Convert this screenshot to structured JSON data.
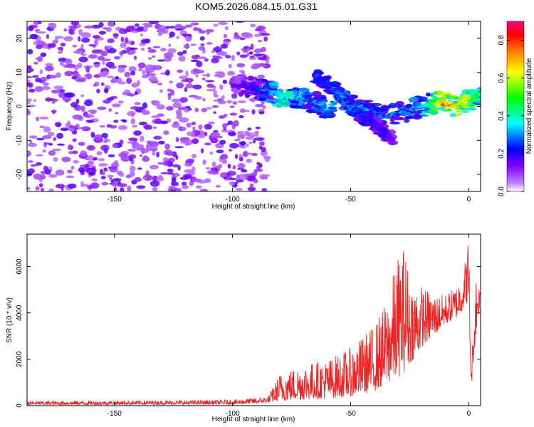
{
  "figure": {
    "title": "KOM5.2026.084.15.01.G31"
  },
  "colors": {
    "snr_line": "#ee2222",
    "colormap": [
      "#ffffff",
      "#c080ff",
      "#8000ff",
      "#0000ff",
      "#00ffff",
      "#00ff00",
      "#ffff00",
      "#ff8000",
      "#ff0000",
      "#ff0080"
    ]
  },
  "chart_data": [
    {
      "type": "heatmap",
      "title": "KOM5.2026.084.15.01.G31",
      "xlabel": "Height of straight line (km)",
      "ylabel": "Frequency (Hz)",
      "xlim": [
        -187,
        5
      ],
      "ylim": [
        -25,
        25
      ],
      "xticks": [
        -150,
        -100,
        -50,
        0
      ],
      "yticks": [
        -20,
        -10,
        0,
        10,
        20
      ],
      "xtick_labels": [
        "-150",
        "-100",
        "-50",
        "0"
      ],
      "ytick_labels": [
        "-20",
        "-10",
        "0",
        "10",
        "20"
      ],
      "noise_region_x": [
        -187,
        -85
      ],
      "noise_amplitude_range": [
        0.05,
        0.3
      ],
      "ridge": {
        "description": "frequency track of main signal",
        "x": [
          -100,
          -92,
          -85,
          -80,
          -75,
          -70,
          -65,
          -60,
          -55,
          -50,
          -45,
          -40,
          -35,
          -30,
          -25,
          -20,
          -15,
          -10,
          -5,
          0,
          3,
          5
        ],
        "freq_hz": [
          6,
          5.5,
          4.5,
          3,
          3,
          2,
          1,
          -1,
          2,
          1,
          -1,
          -2,
          -3,
          -2,
          -1,
          0,
          1,
          1,
          0,
          2,
          2,
          2
        ],
        "amplitude": [
          0.15,
          0.2,
          0.3,
          0.45,
          0.45,
          0.3,
          0.3,
          0.35,
          0.35,
          0.4,
          0.35,
          0.3,
          0.3,
          0.3,
          0.3,
          0.35,
          0.55,
          0.8,
          0.7,
          0.6,
          0.5,
          0.4
        ]
      },
      "secondary_branch": {
        "x": [
          -65,
          -60,
          -55,
          -50,
          -45,
          -40,
          -35,
          -32
        ],
        "freq_hz": [
          9,
          7,
          4,
          0,
          -3,
          -5,
          -8,
          -10
        ],
        "amplitude": [
          0.25,
          0.25,
          0.3,
          0.3,
          0.25,
          0.2,
          0.2,
          0.15
        ]
      },
      "colorbar": {
        "label": "Normalized spectral amplitude",
        "range": [
          0.0,
          0.9
        ],
        "ticks": [
          0.0,
          0.2,
          0.4,
          0.6,
          0.8
        ],
        "tick_labels": [
          "0.0",
          "0.2",
          "0.4",
          "0.6",
          "0.8"
        ]
      }
    },
    {
      "type": "line",
      "xlabel": "Height of straight line (km)",
      "ylabel": "SNR (10 * v/v)",
      "xlim": [
        -187,
        5
      ],
      "ylim": [
        0,
        7400
      ],
      "xticks": [
        -150,
        -100,
        -50,
        0
      ],
      "yticks": [
        0,
        2000,
        4000,
        6000
      ],
      "xtick_labels": [
        "-150",
        "-100",
        "-50",
        "0"
      ],
      "ytick_labels": [
        "0",
        "2000",
        "4000",
        "6000"
      ],
      "series": [
        {
          "name": "SNR",
          "envelope_x": [
            -187,
            -140,
            -100,
            -85,
            -80,
            -70,
            -60,
            -50,
            -40,
            -35,
            -30,
            -27,
            -25,
            -20,
            -15,
            -10,
            -5,
            -2,
            0,
            1,
            3,
            5
          ],
          "envelope_lower": [
            30,
            40,
            50,
            120,
            200,
            250,
            300,
            400,
            600,
            900,
            1200,
            1500,
            1800,
            2500,
            3000,
            3500,
            3800,
            4200,
            4500,
            700,
            3000,
            4600
          ],
          "envelope_upper": [
            200,
            220,
            250,
            400,
            1400,
            1800,
            2000,
            2500,
            3500,
            4500,
            6500,
            7000,
            5500,
            5200,
            4800,
            4800,
            5200,
            6000,
            7400,
            1500,
            5800,
            5000
          ]
        }
      ]
    }
  ]
}
